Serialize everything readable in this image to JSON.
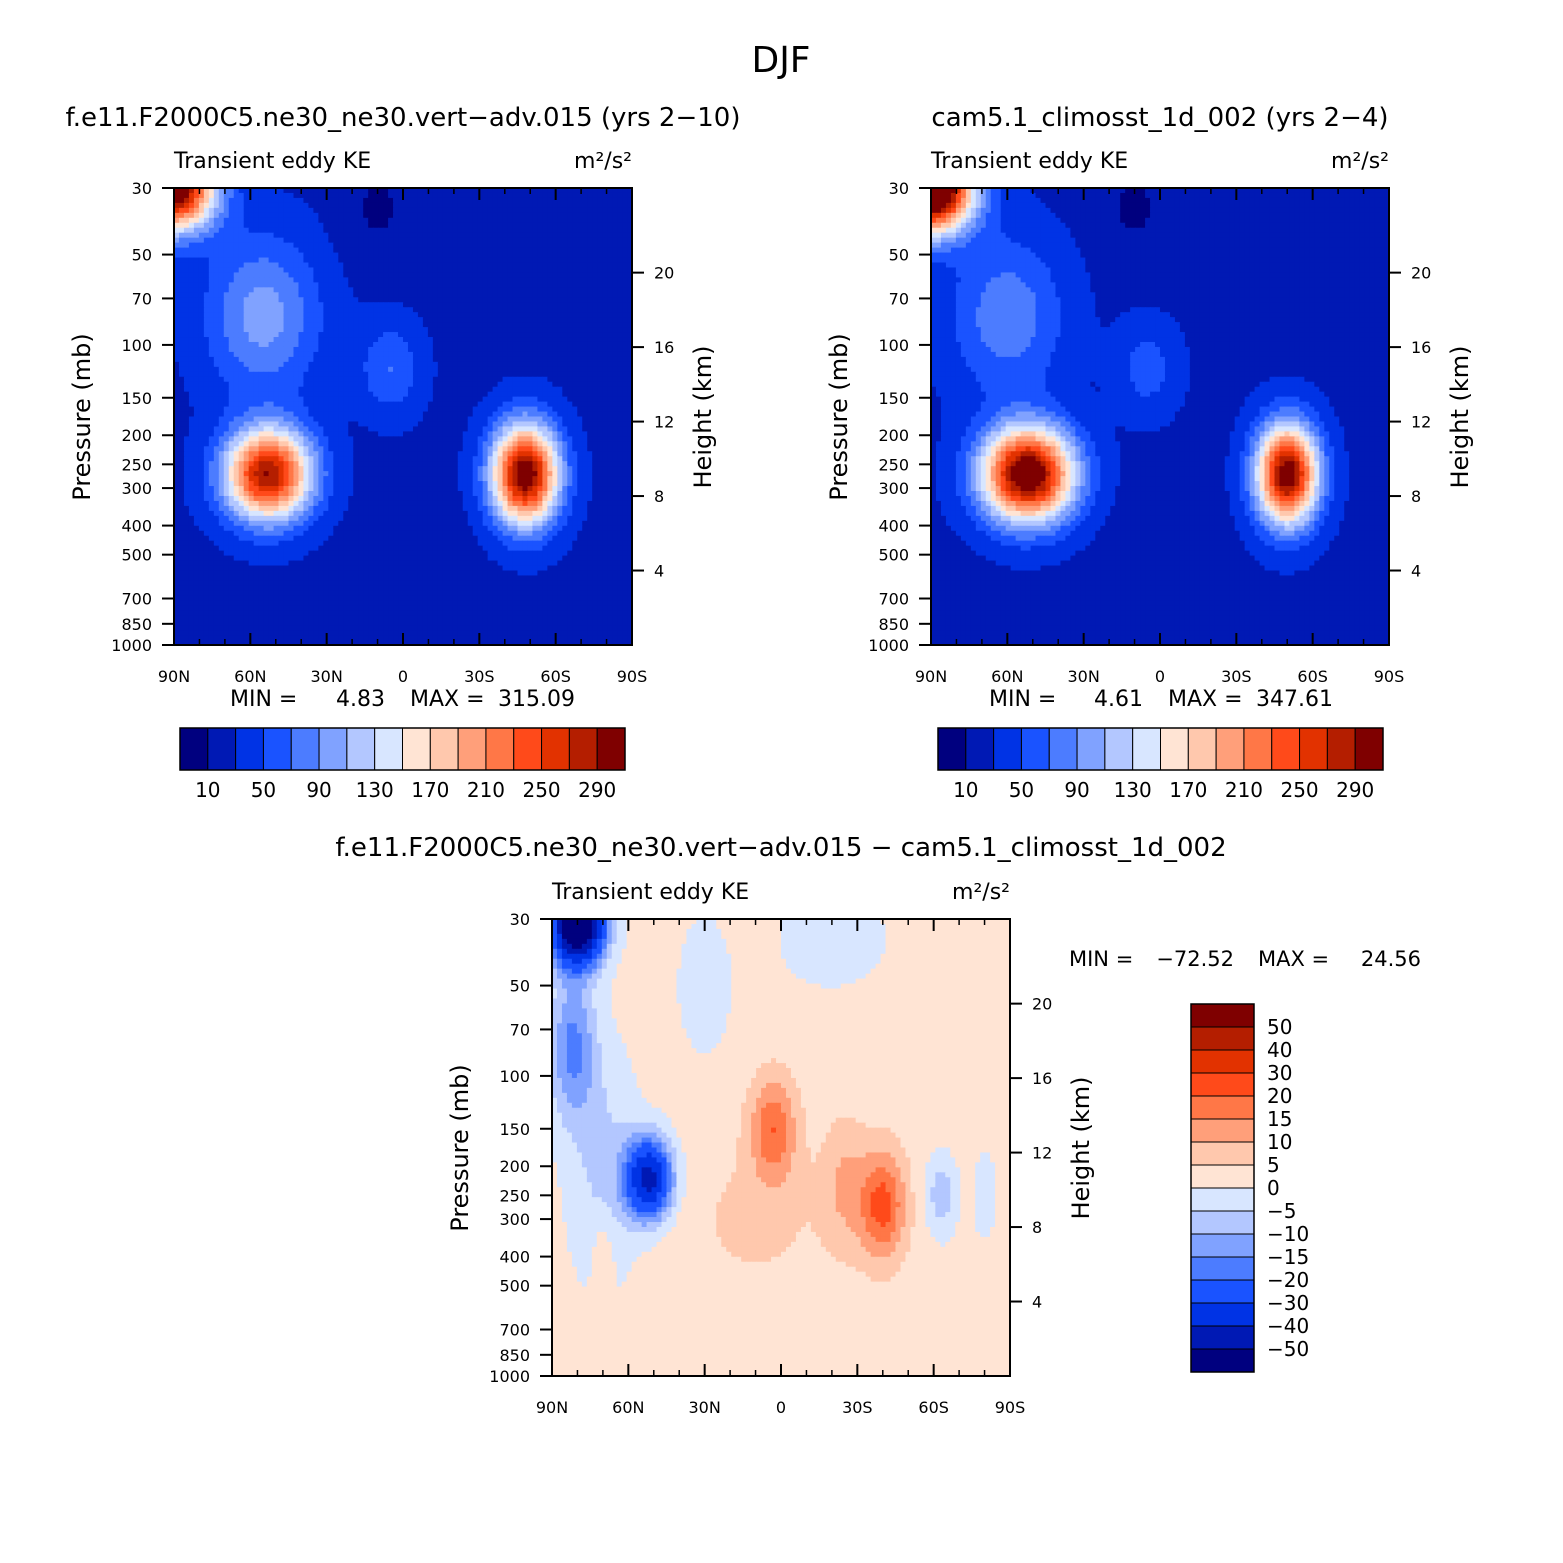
{
  "figure_title": "DJF",
  "colors": {
    "seq": [
      "#00007f",
      "#0019b4",
      "#0033e5",
      "#1a53ff",
      "#4c7cff",
      "#80a2ff",
      "#b3c7ff",
      "#d8e6ff",
      "#ffe4d4",
      "#ffc8ad",
      "#ff9f7a",
      "#ff7747",
      "#ff4a1a",
      "#e23200",
      "#b41e00",
      "#7f0000"
    ],
    "diff": [
      "#7f0000",
      "#b41e00",
      "#e23200",
      "#ff4a1a",
      "#ff7747",
      "#ff9f7a",
      "#ffc8ad",
      "#ffe4d4",
      "#d8e6ff",
      "#b3c7ff",
      "#80a2ff",
      "#4c7cff",
      "#1a53ff",
      "#0033e5",
      "#0019b4",
      "#00007f"
    ]
  },
  "chart_data": [
    {
      "type": "heatmap",
      "title": "f.e11.F2000C5.ne30_ne30.vert−adv.015 (yrs 2−10)",
      "variable": "Transient eddy KE",
      "units": "m²/s²",
      "xlabel": "",
      "ylabel": "Pressure (mb)",
      "y2label": "Height (km)",
      "x_ticks": [
        "90N",
        "60N",
        "30N",
        "0",
        "30S",
        "60S",
        "90S"
      ],
      "y_ticks": [
        "30",
        "50",
        "70",
        "100",
        "150",
        "200",
        "250",
        "300",
        "400",
        "500",
        "700",
        "850",
        "1000"
      ],
      "y2_ticks": [
        "20",
        "16",
        "12",
        "8",
        "4"
      ],
      "min_label": "MIN =",
      "min_value": "4.83",
      "max_label": "MAX =",
      "max_value": "315.09",
      "colorbar_labels": [
        "10",
        "50",
        "90",
        "130",
        "170",
        "210",
        "250",
        "290"
      ],
      "levels": [
        10,
        30,
        50,
        70,
        90,
        110,
        130,
        150,
        170,
        190,
        210,
        230,
        250,
        270,
        290
      ],
      "field": {
        "base": 25,
        "blobs": [
          {
            "lat": -48,
            "p": 270,
            "amp": 290,
            "dlat": 13,
            "dz": 0.38
          },
          {
            "lat": 53,
            "p": 270,
            "amp": 265,
            "dlat": 17,
            "dz": 0.35
          },
          {
            "lat": 90,
            "p": 30,
            "amp": 300,
            "dlat": 16,
            "dz": 0.32
          },
          {
            "lat": 55,
            "p": 80,
            "amp": 75,
            "dlat": 22,
            "dz": 0.6
          },
          {
            "lat": 5,
            "p": 120,
            "amp": 45,
            "dlat": 12,
            "dz": 0.35
          },
          {
            "lat": -70,
            "p": 40,
            "amp": -15,
            "dlat": 10,
            "dz": 0.4
          },
          {
            "lat": 10,
            "p": 35,
            "amp": -18,
            "dlat": 14,
            "dz": 0.4
          },
          {
            "lat": 0,
            "p": 600,
            "amp": -15,
            "dlat": 18,
            "dz": 0.5
          }
        ]
      }
    },
    {
      "type": "heatmap",
      "title": "cam5.1_climosst_1d_002 (yrs 2−4)",
      "variable": "Transient eddy KE",
      "units": "m²/s²",
      "xlabel": "",
      "ylabel": "Pressure (mb)",
      "y2label": "Height (km)",
      "x_ticks": [
        "90N",
        "60N",
        "30N",
        "0",
        "30S",
        "60S",
        "90S"
      ],
      "y_ticks": [
        "30",
        "50",
        "70",
        "100",
        "150",
        "200",
        "250",
        "300",
        "400",
        "500",
        "700",
        "850",
        "1000"
      ],
      "y2_ticks": [
        "20",
        "16",
        "12",
        "8",
        "4"
      ],
      "min_label": "MIN =",
      "min_value": "4.61",
      "max_label": "MAX =",
      "max_value": "347.61",
      "colorbar_labels": [
        "10",
        "50",
        "90",
        "130",
        "170",
        "210",
        "250",
        "290"
      ],
      "levels": [
        10,
        30,
        50,
        70,
        90,
        110,
        130,
        150,
        170,
        190,
        210,
        230,
        250,
        270,
        290
      ],
      "field": {
        "base": 25,
        "blobs": [
          {
            "lat": -50,
            "p": 270,
            "amp": 285,
            "dlat": 12,
            "dz": 0.38
          },
          {
            "lat": 52,
            "p": 270,
            "amp": 300,
            "dlat": 18,
            "dz": 0.36
          },
          {
            "lat": 90,
            "p": 30,
            "amp": 360,
            "dlat": 16,
            "dz": 0.33
          },
          {
            "lat": 60,
            "p": 80,
            "amp": 60,
            "dlat": 22,
            "dz": 0.6
          },
          {
            "lat": 5,
            "p": 120,
            "amp": 35,
            "dlat": 12,
            "dz": 0.35
          },
          {
            "lat": -70,
            "p": 40,
            "amp": -15,
            "dlat": 10,
            "dz": 0.4
          },
          {
            "lat": 10,
            "p": 35,
            "amp": -18,
            "dlat": 14,
            "dz": 0.4
          },
          {
            "lat": 0,
            "p": 600,
            "amp": -15,
            "dlat": 18,
            "dz": 0.5
          }
        ]
      }
    },
    {
      "type": "heatmap",
      "title": "f.e11.F2000C5.ne30_ne30.vert−adv.015 − cam5.1_climosst_1d_002",
      "variable": "Transient eddy KE",
      "units": "m²/s²",
      "xlabel": "",
      "ylabel": "Pressure (mb)",
      "y2label": "Height (km)",
      "x_ticks": [
        "90N",
        "60N",
        "30N",
        "0",
        "30S",
        "60S",
        "90S"
      ],
      "y_ticks": [
        "30",
        "50",
        "70",
        "100",
        "150",
        "200",
        "250",
        "300",
        "400",
        "500",
        "700",
        "850",
        "1000"
      ],
      "y2_ticks": [
        "20",
        "16",
        "12",
        "8",
        "4"
      ],
      "min_label": "MIN =",
      "min_value": "−72.52",
      "max_label": "MAX =",
      "max_value": "24.56",
      "colorbar_labels": [
        "50",
        "40",
        "30",
        "20",
        "15",
        "10",
        "5",
        "0",
        "−5",
        "−10",
        "−15",
        "−20",
        "−30",
        "−40",
        "−50"
      ],
      "levels": [
        -50,
        -40,
        -30,
        -20,
        -15,
        -10,
        -5,
        0,
        5,
        10,
        15,
        20,
        30,
        40,
        50
      ],
      "field": {
        "base": 2,
        "blobs": [
          {
            "lat": 80,
            "p": 32,
            "amp": -70,
            "dlat": 10,
            "dz": 0.28
          },
          {
            "lat": 82,
            "p": 80,
            "amp": -18,
            "dlat": 9,
            "dz": 0.55
          },
          {
            "lat": 70,
            "p": 200,
            "amp": -8,
            "dlat": 14,
            "dz": 0.9
          },
          {
            "lat": 52,
            "p": 220,
            "amp": -45,
            "dlat": 9,
            "dz": 0.3
          },
          {
            "lat": 30,
            "p": 50,
            "amp": -6,
            "dlat": 10,
            "dz": 0.5
          },
          {
            "lat": 3,
            "p": 150,
            "amp": 17,
            "dlat": 9,
            "dz": 0.4
          },
          {
            "lat": -40,
            "p": 270,
            "amp": 20,
            "dlat": 9,
            "dz": 0.42
          },
          {
            "lat": -25,
            "p": 230,
            "amp": 8,
            "dlat": 9,
            "dz": 0.5
          },
          {
            "lat": 10,
            "p": 300,
            "amp": 4,
            "dlat": 30,
            "dz": 0.6
          },
          {
            "lat": -63,
            "p": 250,
            "amp": -10,
            "dlat": 6,
            "dz": 0.3
          },
          {
            "lat": -80,
            "p": 250,
            "amp": -7,
            "dlat": 4,
            "dz": 0.3
          },
          {
            "lat": -20,
            "p": 35,
            "amp": -6,
            "dlat": 20,
            "dz": 0.35
          },
          {
            "lat": 70,
            "p": 400,
            "amp": 6,
            "dlat": 4,
            "dz": 0.3
          }
        ]
      }
    }
  ]
}
